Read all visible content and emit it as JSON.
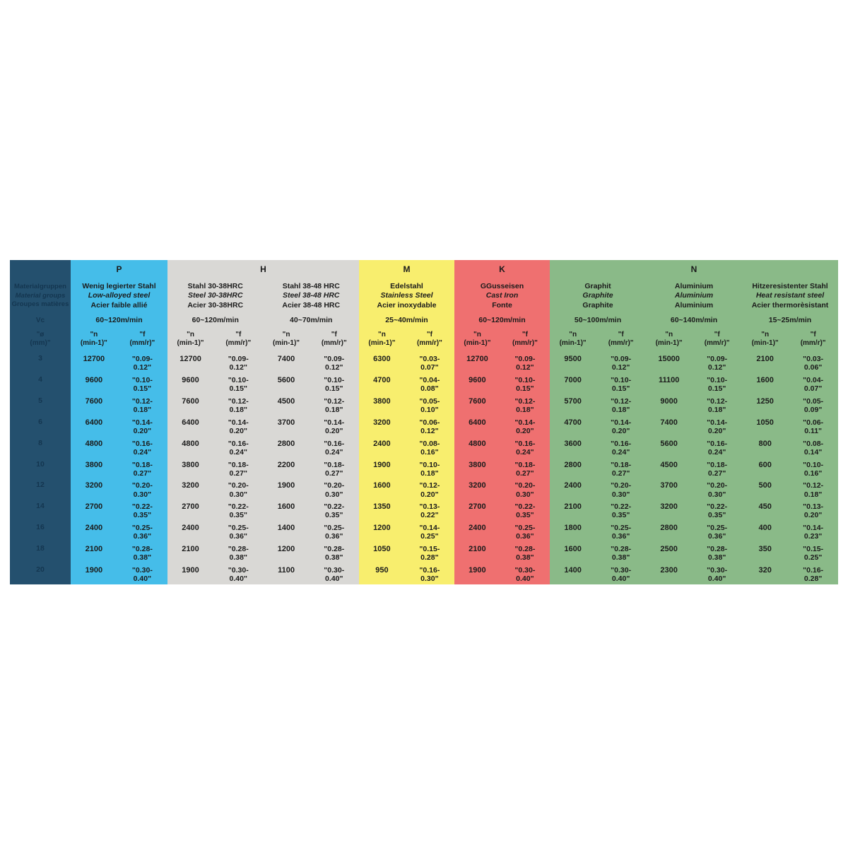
{
  "label_column": {
    "bg": "#24506E",
    "text_color": "#143650",
    "title_de": "Materialgruppen",
    "title_en": "Material groups",
    "title_fr": "Groupes matières",
    "vc_label": "Vc",
    "diameter_header": "\"ø\n(mm)\"",
    "diameters": [
      "3",
      "4",
      "5",
      "6",
      "8",
      "10",
      "12",
      "14",
      "16",
      "18",
      "20"
    ]
  },
  "column_headers": {
    "n": "\"n\n(min-1)\"",
    "f": "\"f\n(mm/r)\""
  },
  "groups": [
    {
      "letter": "P",
      "color": "#45BDE9",
      "css": "g-p",
      "materials": [
        {
          "name_de": "Wenig legierter Stahl",
          "name_en": "Low-alloyed steel",
          "name_fr": "Acier faible allié",
          "vc": "60~120m/min",
          "n": [
            "12700",
            "9600",
            "7600",
            "6400",
            "4800",
            "3800",
            "3200",
            "2700",
            "2400",
            "2100",
            "1900"
          ],
          "f": [
            "\"0.09-\n0.12\"",
            "\"0.10-\n0.15\"",
            "\"0.12-\n0.18\"",
            "\"0.14-\n0.20\"",
            "\"0.16-\n0.24\"",
            "\"0.18-\n0.27\"",
            "\"0.20-\n0.30\"",
            "\"0.22-\n0.35\"",
            "\"0.25-\n0.36\"",
            "\"0.28-\n0.38\"",
            "\"0.30-\n0.40\""
          ]
        }
      ]
    },
    {
      "letter": "H",
      "color": "#D9D8D5",
      "css": "g-h",
      "materials": [
        {
          "name_de": "Stahl 30-38HRC",
          "name_en": "Steel 30-38HRC",
          "name_fr": "Acier 30-38HRC",
          "vc": "60~120m/min",
          "n": [
            "12700",
            "9600",
            "7600",
            "6400",
            "4800",
            "3800",
            "3200",
            "2700",
            "2400",
            "2100",
            "1900"
          ],
          "f": [
            "\"0.09-\n0.12\"",
            "\"0.10-\n0.15\"",
            "\"0.12-\n0.18\"",
            "\"0.14-\n0.20\"",
            "\"0.16-\n0.24\"",
            "\"0.18-\n0.27\"",
            "\"0.20-\n0.30\"",
            "\"0.22-\n0.35\"",
            "\"0.25-\n0.36\"",
            "\"0.28-\n0.38\"",
            "\"0.30-\n0.40\""
          ]
        },
        {
          "name_de": "Stahl 38-48 HRC",
          "name_en": "Steel 38-48 HRC",
          "name_fr": "Acier 38-48 HRC",
          "vc": "40~70m/min",
          "n": [
            "7400",
            "5600",
            "4500",
            "3700",
            "2800",
            "2200",
            "1900",
            "1600",
            "1400",
            "1200",
            "1100"
          ],
          "f": [
            "\"0.09-\n0.12\"",
            "\"0.10-\n0.15\"",
            "\"0.12-\n0.18\"",
            "\"0.14-\n0.20\"",
            "\"0.16-\n0.24\"",
            "\"0.18-\n0.27\"",
            "\"0.20-\n0.30\"",
            "\"0.22-\n0.35\"",
            "\"0.25-\n0.36\"",
            "\"0.28-\n0.38\"",
            "\"0.30-\n0.40\""
          ]
        }
      ]
    },
    {
      "letter": "M",
      "color": "#F8EE6E",
      "css": "g-m",
      "materials": [
        {
          "name_de": "Edelstahl",
          "name_en": "Stainless Steel",
          "name_fr": "Acier inoxydable",
          "vc": "25~40m/min",
          "n": [
            "6300",
            "4700",
            "3800",
            "3200",
            "2400",
            "1900",
            "1600",
            "1350",
            "1200",
            "1050",
            "950"
          ],
          "f": [
            "\"0.03-\n0.07\"",
            "\"0.04-\n0.08\"",
            "\"0.05-\n0.10\"",
            "\"0.06-\n0.12\"",
            "\"0.08-\n0.16\"",
            "\"0.10-\n0.18\"",
            "\"0.12-\n0.20\"",
            "\"0.13-\n0.22\"",
            "\"0.14-\n0.25\"",
            "\"0.15-\n0.28\"",
            "\"0.16-\n0.30\""
          ]
        }
      ]
    },
    {
      "letter": "K",
      "color": "#EF7070",
      "css": "g-k",
      "materials": [
        {
          "name_de": "GGusseisen",
          "name_en": "Cast Iron",
          "name_fr": "Fonte",
          "vc": "60~120m/min",
          "n": [
            "12700",
            "9600",
            "7600",
            "6400",
            "4800",
            "3800",
            "3200",
            "2700",
            "2400",
            "2100",
            "1900"
          ],
          "f": [
            "\"0.09-\n0.12\"",
            "\"0.10-\n0.15\"",
            "\"0.12-\n0.18\"",
            "\"0.14-\n0.20\"",
            "\"0.16-\n0.24\"",
            "\"0.18-\n0.27\"",
            "\"0.20-\n0.30\"",
            "\"0.22-\n0.35\"",
            "\"0.25-\n0.36\"",
            "\"0.28-\n0.38\"",
            "\"0.30-\n0.40\""
          ]
        }
      ]
    },
    {
      "letter": "N",
      "color": "#8ABA88",
      "css": "g-n",
      "materials": [
        {
          "name_de": "Graphit",
          "name_en": "Graphite",
          "name_fr": "Graphite",
          "vc": "50~100m/min",
          "n": [
            "9500",
            "7000",
            "5700",
            "4700",
            "3600",
            "2800",
            "2400",
            "2100",
            "1800",
            "1600",
            "1400"
          ],
          "f": [
            "\"0.09-\n0.12\"",
            "\"0.10-\n0.15\"",
            "\"0.12-\n0.18\"",
            "\"0.14-\n0.20\"",
            "\"0.16-\n0.24\"",
            "\"0.18-\n0.27\"",
            "\"0.20-\n0.30\"",
            "\"0.22-\n0.35\"",
            "\"0.25-\n0.36\"",
            "\"0.28-\n0.38\"",
            "\"0.30-\n0.40\""
          ]
        },
        {
          "name_de": "Aluminium",
          "name_en": "Aluminium",
          "name_fr": "Aluminium",
          "vc": "60~140m/min",
          "n": [
            "15000",
            "11100",
            "9000",
            "7400",
            "5600",
            "4500",
            "3700",
            "3200",
            "2800",
            "2500",
            "2300"
          ],
          "f": [
            "\"0.09-\n0.12\"",
            "\"0.10-\n0.15\"",
            "\"0.12-\n0.18\"",
            "\"0.14-\n0.20\"",
            "\"0.16-\n0.24\"",
            "\"0.18-\n0.27\"",
            "\"0.20-\n0.30\"",
            "\"0.22-\n0.35\"",
            "\"0.25-\n0.36\"",
            "\"0.28-\n0.38\"",
            "\"0.30-\n0.40\""
          ]
        },
        {
          "name_de": "Hitzeresistenter Stahl",
          "name_en": "Heat resistant steel",
          "name_fr": "Acier thermorèsistant",
          "vc": "15~25m/min",
          "n": [
            "2100",
            "1600",
            "1250",
            "1050",
            "800",
            "600",
            "500",
            "450",
            "400",
            "350",
            "320"
          ],
          "f": [
            "\"0.03-\n0.06\"",
            "\"0.04-\n0.07\"",
            "\"0.05-\n0.09\"",
            "\"0.06-\n0.11\"",
            "\"0.08-\n0.14\"",
            "\"0.10-\n0.16\"",
            "\"0.12-\n0.18\"",
            "\"0.13-\n0.20\"",
            "\"0.14-\n0.23\"",
            "\"0.15-\n0.25\"",
            "\"0.16-\n0.28\""
          ]
        }
      ]
    }
  ]
}
